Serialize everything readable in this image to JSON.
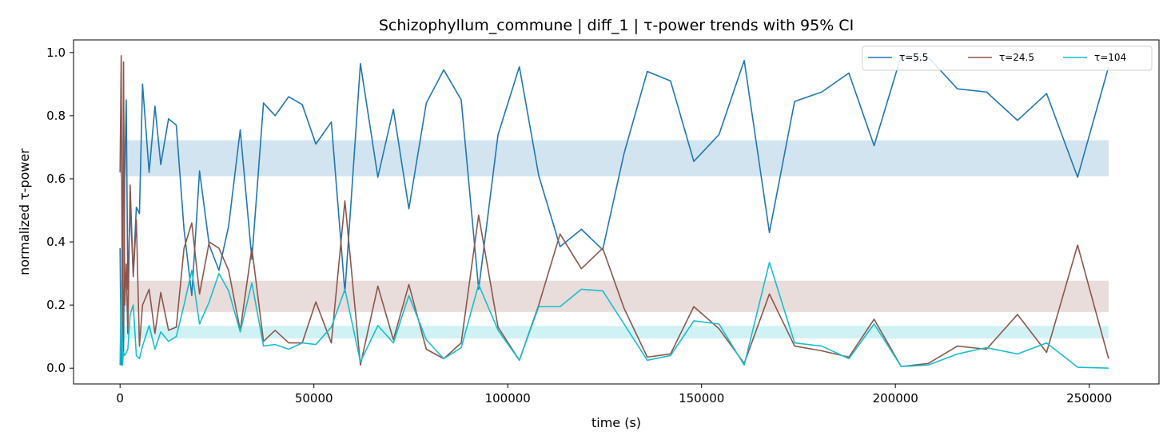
{
  "chart_data": {
    "type": "line",
    "title": "Schizophyllum_commune | diff_1 | τ-power trends with 95% CI",
    "xlabel": "time (s)",
    "ylabel": "normalized τ-power",
    "xlim": [
      -12000,
      268000
    ],
    "ylim": [
      -0.05,
      1.04
    ],
    "xticks": [
      0,
      50000,
      100000,
      150000,
      200000,
      250000
    ],
    "xtick_labels": [
      "0",
      "50000",
      "100000",
      "150000",
      "200000",
      "250000"
    ],
    "yticks": [
      0.0,
      0.2,
      0.4,
      0.6,
      0.8,
      1.0
    ],
    "ytick_labels": [
      "0.0",
      "0.2",
      "0.4",
      "0.6",
      "0.8",
      "1.0"
    ],
    "grid": false,
    "legend_position": "top-right",
    "series": [
      {
        "name": "τ=5.5",
        "color": "#1f77b4",
        "ci": [
          0.608,
          0.722
        ],
        "ci_range": [
          0,
          255000
        ],
        "points": [
          [
            0,
            0.38
          ],
          [
            300,
            0.01
          ],
          [
            600,
            0.3
          ],
          [
            900,
            0.05
          ],
          [
            1200,
            0.61
          ],
          [
            1600,
            0.85
          ],
          [
            2000,
            0.25
          ],
          [
            2600,
            0.52
          ],
          [
            3400,
            0.3
          ],
          [
            4200,
            0.51
          ],
          [
            5000,
            0.49
          ],
          [
            5800,
            0.9
          ],
          [
            7500,
            0.62
          ],
          [
            9000,
            0.83
          ],
          [
            10500,
            0.645
          ],
          [
            12500,
            0.79
          ],
          [
            14500,
            0.77
          ],
          [
            16500,
            0.44
          ],
          [
            18500,
            0.23
          ],
          [
            20500,
            0.625
          ],
          [
            23000,
            0.39
          ],
          [
            25500,
            0.31
          ],
          [
            28000,
            0.45
          ],
          [
            31000,
            0.755
          ],
          [
            34000,
            0.345
          ],
          [
            37000,
            0.84
          ],
          [
            40000,
            0.8
          ],
          [
            43500,
            0.86
          ],
          [
            47000,
            0.835
          ],
          [
            50500,
            0.71
          ],
          [
            54500,
            0.78
          ],
          [
            58000,
            0.24
          ],
          [
            62000,
            0.965
          ],
          [
            66500,
            0.605
          ],
          [
            70500,
            0.82
          ],
          [
            74500,
            0.505
          ],
          [
            79000,
            0.84
          ],
          [
            83500,
            0.945
          ],
          [
            88000,
            0.85
          ],
          [
            92500,
            0.25
          ],
          [
            97500,
            0.74
          ],
          [
            103000,
            0.955
          ],
          [
            108000,
            0.61
          ],
          [
            113500,
            0.385
          ],
          [
            119000,
            0.44
          ],
          [
            124500,
            0.375
          ],
          [
            130000,
            0.68
          ],
          [
            136000,
            0.94
          ],
          [
            142000,
            0.91
          ],
          [
            148000,
            0.655
          ],
          [
            154500,
            0.74
          ],
          [
            161000,
            0.975
          ],
          [
            167500,
            0.43
          ],
          [
            174000,
            0.845
          ],
          [
            181000,
            0.875
          ],
          [
            188000,
            0.935
          ],
          [
            194500,
            0.705
          ],
          [
            201500,
            0.99
          ],
          [
            208500,
            0.985
          ],
          [
            216000,
            0.885
          ],
          [
            223500,
            0.875
          ],
          [
            231500,
            0.785
          ],
          [
            239000,
            0.87
          ],
          [
            247000,
            0.605
          ],
          [
            255000,
            0.955
          ]
        ]
      },
      {
        "name": "τ=24.5",
        "color": "#8c564b",
        "ci": [
          0.178,
          0.277
        ],
        "ci_range": [
          0,
          255000
        ],
        "points": [
          [
            0,
            0.62
          ],
          [
            300,
            0.99
          ],
          [
            600,
            0.1
          ],
          [
            900,
            0.97
          ],
          [
            1200,
            0.2
          ],
          [
            1600,
            0.33
          ],
          [
            2000,
            0.11
          ],
          [
            2600,
            0.58
          ],
          [
            3400,
            0.29
          ],
          [
            4200,
            0.47
          ],
          [
            5000,
            0.07
          ],
          [
            5800,
            0.2
          ],
          [
            7500,
            0.25
          ],
          [
            9000,
            0.11
          ],
          [
            10500,
            0.24
          ],
          [
            12500,
            0.12
          ],
          [
            14500,
            0.13
          ],
          [
            16500,
            0.38
          ],
          [
            18500,
            0.46
          ],
          [
            20500,
            0.235
          ],
          [
            23000,
            0.4
          ],
          [
            25500,
            0.38
          ],
          [
            28000,
            0.31
          ],
          [
            31000,
            0.12
          ],
          [
            34000,
            0.38
          ],
          [
            37000,
            0.085
          ],
          [
            40000,
            0.12
          ],
          [
            43500,
            0.08
          ],
          [
            47000,
            0.08
          ],
          [
            50500,
            0.21
          ],
          [
            54500,
            0.08
          ],
          [
            58000,
            0.53
          ],
          [
            62000,
            0.01
          ],
          [
            66500,
            0.26
          ],
          [
            70500,
            0.09
          ],
          [
            74500,
            0.265
          ],
          [
            79000,
            0.06
          ],
          [
            83500,
            0.03
          ],
          [
            88000,
            0.08
          ],
          [
            92500,
            0.485
          ],
          [
            97500,
            0.13
          ],
          [
            103000,
            0.025
          ],
          [
            108000,
            0.2
          ],
          [
            113500,
            0.425
          ],
          [
            119000,
            0.315
          ],
          [
            124500,
            0.38
          ],
          [
            130000,
            0.19
          ],
          [
            136000,
            0.035
          ],
          [
            142000,
            0.045
          ],
          [
            148000,
            0.195
          ],
          [
            154500,
            0.125
          ],
          [
            161000,
            0.015
          ],
          [
            167500,
            0.235
          ],
          [
            174000,
            0.07
          ],
          [
            181000,
            0.055
          ],
          [
            188000,
            0.035
          ],
          [
            194500,
            0.155
          ],
          [
            201500,
            0.005
          ],
          [
            208500,
            0.015
          ],
          [
            216000,
            0.07
          ],
          [
            223500,
            0.06
          ],
          [
            231500,
            0.17
          ],
          [
            239000,
            0.05
          ],
          [
            247000,
            0.39
          ],
          [
            255000,
            0.03
          ]
        ]
      },
      {
        "name": "τ=104",
        "color": "#17becf",
        "ci": [
          0.094,
          0.134
        ],
        "ci_range": [
          0,
          255000
        ],
        "points": [
          [
            0,
            0.01
          ],
          [
            300,
            0.26
          ],
          [
            600,
            0.01
          ],
          [
            900,
            0.05
          ],
          [
            1200,
            0.04
          ],
          [
            1600,
            0.05
          ],
          [
            2000,
            0.06
          ],
          [
            2600,
            0.17
          ],
          [
            3400,
            0.2
          ],
          [
            4200,
            0.04
          ],
          [
            5000,
            0.03
          ],
          [
            5800,
            0.07
          ],
          [
            7500,
            0.135
          ],
          [
            9000,
            0.06
          ],
          [
            10500,
            0.115
          ],
          [
            12500,
            0.085
          ],
          [
            14500,
            0.1
          ],
          [
            16500,
            0.2
          ],
          [
            18500,
            0.31
          ],
          [
            20500,
            0.14
          ],
          [
            23000,
            0.21
          ],
          [
            25500,
            0.3
          ],
          [
            28000,
            0.245
          ],
          [
            31000,
            0.115
          ],
          [
            34000,
            0.27
          ],
          [
            37000,
            0.07
          ],
          [
            40000,
            0.075
          ],
          [
            43500,
            0.06
          ],
          [
            47000,
            0.08
          ],
          [
            50500,
            0.075
          ],
          [
            54500,
            0.13
          ],
          [
            58000,
            0.25
          ],
          [
            62000,
            0.02
          ],
          [
            66500,
            0.135
          ],
          [
            70500,
            0.08
          ],
          [
            74500,
            0.23
          ],
          [
            79000,
            0.09
          ],
          [
            83500,
            0.03
          ],
          [
            88000,
            0.065
          ],
          [
            92500,
            0.265
          ],
          [
            97500,
            0.12
          ],
          [
            103000,
            0.025
          ],
          [
            108000,
            0.195
          ],
          [
            113500,
            0.195
          ],
          [
            119000,
            0.25
          ],
          [
            124500,
            0.245
          ],
          [
            130000,
            0.14
          ],
          [
            136000,
            0.025
          ],
          [
            142000,
            0.04
          ],
          [
            148000,
            0.15
          ],
          [
            154500,
            0.14
          ],
          [
            161000,
            0.01
          ],
          [
            167500,
            0.335
          ],
          [
            174000,
            0.08
          ],
          [
            181000,
            0.07
          ],
          [
            188000,
            0.03
          ],
          [
            194500,
            0.14
          ],
          [
            201500,
            0.005
          ],
          [
            208500,
            0.01
          ],
          [
            216000,
            0.045
          ],
          [
            223500,
            0.065
          ],
          [
            231500,
            0.045
          ],
          [
            239000,
            0.08
          ],
          [
            247000,
            0.003
          ],
          [
            255000,
            0.0
          ]
        ]
      }
    ]
  }
}
